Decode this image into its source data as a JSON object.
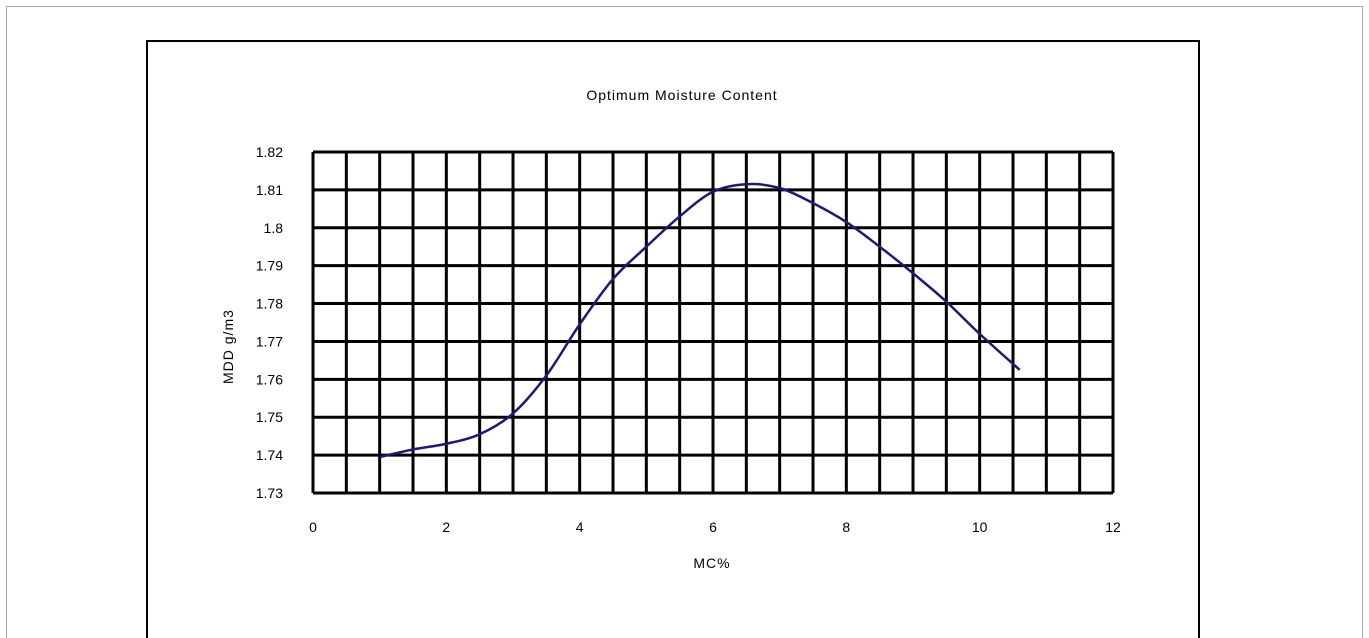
{
  "chart_data": {
    "type": "line",
    "title": "Optimum Moisture Content",
    "xlabel": "MC%",
    "ylabel": "MDD g/m3",
    "xlim": [
      0,
      12
    ],
    "ylim": [
      1.73,
      1.82
    ],
    "x_ticks": [
      "0",
      "2",
      "4",
      "6",
      "8",
      "10",
      "12"
    ],
    "y_ticks": [
      "1.73",
      "1.74",
      "1.75",
      "1.76",
      "1.77",
      "1.78",
      "1.79",
      "1.8",
      "1.81",
      "1.82"
    ],
    "grid": true,
    "series": [
      {
        "color": "#1a1a7a",
        "x": [
          1.0,
          1.5,
          2.0,
          2.5,
          3.0,
          3.5,
          4.0,
          4.5,
          5.0,
          5.5,
          6.0,
          6.5,
          7.0,
          7.5,
          8.0,
          8.5,
          9.0,
          9.5,
          10.0,
          10.6
        ],
        "y": [
          1.7395,
          1.7415,
          1.743,
          1.7455,
          1.751,
          1.761,
          1.7745,
          1.7865,
          1.795,
          1.803,
          1.8095,
          1.8115,
          1.8105,
          1.8065,
          1.8015,
          1.795,
          1.788,
          1.7805,
          1.772,
          1.7625
        ]
      }
    ]
  }
}
